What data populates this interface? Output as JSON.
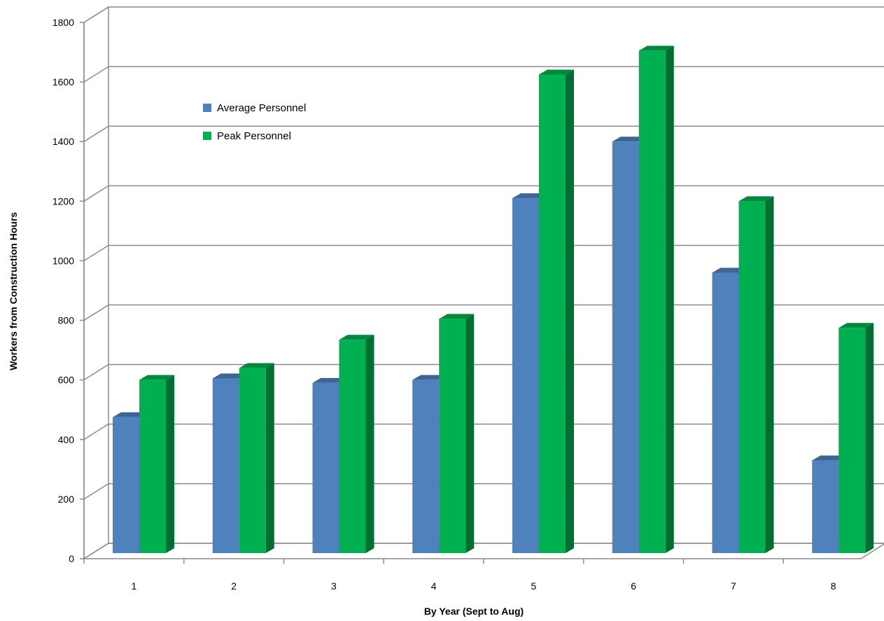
{
  "chart_data": {
    "type": "bar",
    "xlabel": "By Year (Sept to Aug)",
    "ylabel": "Workers from Construction Hours",
    "categories": [
      "1",
      "2",
      "3",
      "4",
      "5",
      "6",
      "7",
      "8"
    ],
    "series": [
      {
        "name": "Average Personnel",
        "color": "#4f81bd",
        "values": [
          475,
          605,
          590,
          600,
          1210,
          1400,
          960,
          330
        ]
      },
      {
        "name": "Peak Personnel",
        "color": "#00b050",
        "values": [
          600,
          640,
          735,
          805,
          1625,
          1705,
          1200,
          775
        ]
      }
    ],
    "ylim": [
      0,
      1800
    ],
    "yticks": [
      "0",
      "200",
      "400",
      "600",
      "800",
      "1000",
      "1200",
      "1400",
      "1600",
      "1800"
    ],
    "grid": true,
    "legend_position": "top-left",
    "style": "3d-column"
  }
}
